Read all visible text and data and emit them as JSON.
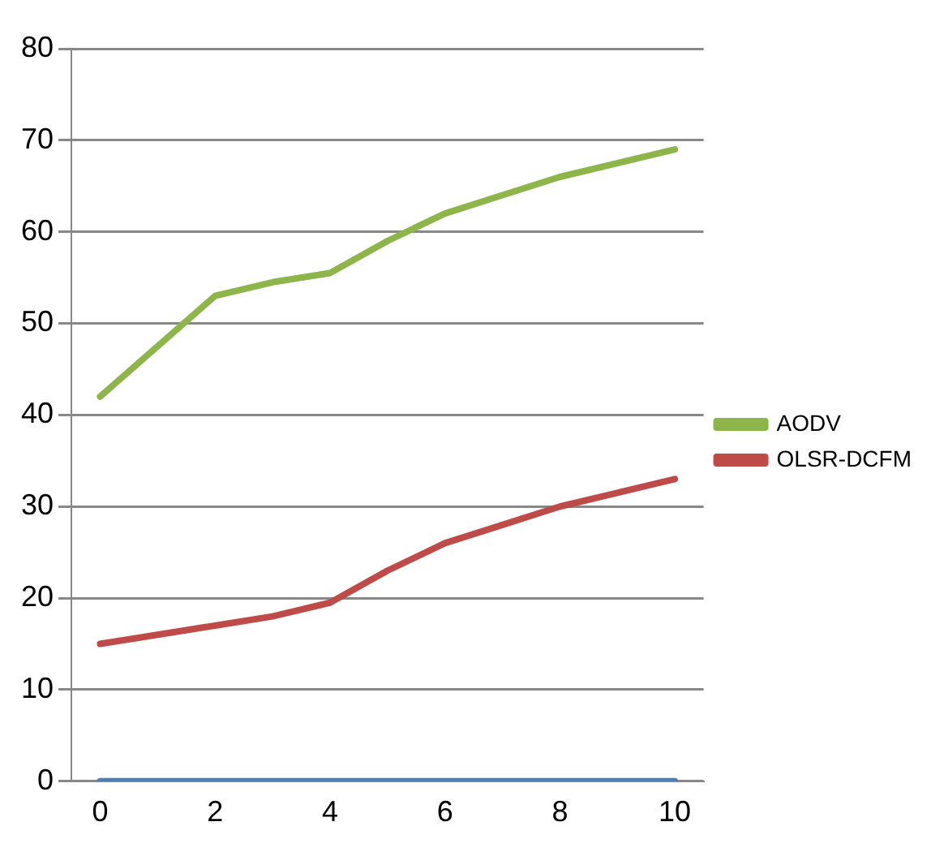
{
  "chart_data": {
    "type": "line",
    "categories": [
      "0",
      null,
      "2",
      null,
      "4",
      null,
      "6",
      null,
      "8",
      null,
      "10"
    ],
    "series": [
      {
        "name": "AODV",
        "color": "#8db54a",
        "values": [
          42,
          47.5,
          53,
          54.5,
          55.5,
          59,
          62,
          64,
          66,
          67.5,
          69
        ]
      },
      {
        "name": "OLSR-DCFM",
        "color": "#bf4b48",
        "values": [
          15,
          16,
          17,
          18,
          19.5,
          23,
          26,
          28,
          30,
          31.5,
          33
        ]
      },
      {
        "color": "#4a7ebb",
        "values": [
          0,
          0,
          0,
          0,
          0,
          0,
          0,
          0,
          0,
          0,
          0
        ]
      }
    ],
    "ylim": [
      0,
      80
    ],
    "yticks": [
      0,
      10,
      20,
      30,
      40,
      50,
      60,
      70,
      80
    ],
    "grid": "y",
    "legend": "right",
    "marker": "none",
    "line_style": "solid"
  }
}
